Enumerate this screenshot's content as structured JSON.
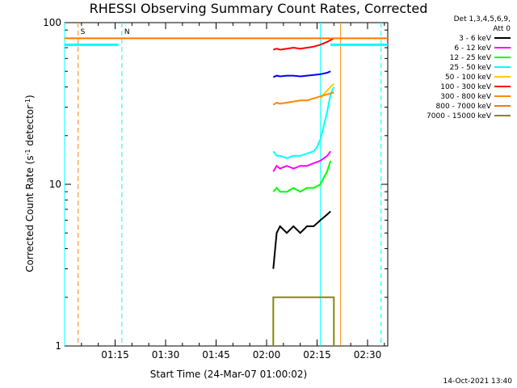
{
  "chart_data": {
    "type": "line",
    "title": "RHESSI Observing Summary Count Rates, Corrected",
    "xlabel": "Start Time (24-Mar-07 01:00:02)",
    "ylabel_main": "Corrected Count Rate (s",
    "ylabel_sup1": "-1",
    "ylabel_mid": " detector",
    "ylabel_sup2": "-1",
    "ylabel_end": ")",
    "x_range_minutes": [
      0,
      96
    ],
    "y_scale": "log",
    "ylim": [
      1,
      100
    ],
    "x_ticks": [
      {
        "label": "01:15",
        "minute": 15
      },
      {
        "label": "01:30",
        "minute": 30
      },
      {
        "label": "01:45",
        "minute": 45
      },
      {
        "label": "02:00",
        "minute": 60
      },
      {
        "label": "02:15",
        "minute": 75
      },
      {
        "label": "02:30",
        "minute": 90
      }
    ],
    "y_ticks": [
      {
        "label": "1",
        "value": 1
      },
      {
        "label": "10",
        "value": 10
      },
      {
        "label": "100",
        "value": 100
      }
    ],
    "legend_header": [
      "Det 1,3,4,5,6,9,",
      "Att 0"
    ],
    "series": [
      {
        "name": "3 - 6 keV",
        "color": "#000000",
        "values": [
          [
            62,
            3.0
          ],
          [
            63,
            5.0
          ],
          [
            64,
            5.5
          ],
          [
            66,
            5.0
          ],
          [
            68,
            5.5
          ],
          [
            70,
            5.0
          ],
          [
            72,
            5.5
          ],
          [
            74,
            5.5
          ],
          [
            76,
            6.0
          ],
          [
            78,
            6.5
          ],
          [
            79,
            6.8
          ]
        ]
      },
      {
        "name": "6 - 12 keV",
        "color": "#ff00ff",
        "values": [
          [
            62,
            12.0
          ],
          [
            63,
            13.0
          ],
          [
            64,
            12.5
          ],
          [
            66,
            13.0
          ],
          [
            68,
            12.5
          ],
          [
            70,
            13.0
          ],
          [
            72,
            13.0
          ],
          [
            74,
            13.5
          ],
          [
            76,
            14.0
          ],
          [
            78,
            15.0
          ],
          [
            79,
            16.0
          ]
        ]
      },
      {
        "name": "12 - 25 keV",
        "color": "#00ff00",
        "values": [
          [
            62,
            9.0
          ],
          [
            63,
            9.5
          ],
          [
            64,
            9.0
          ],
          [
            66,
            9.0
          ],
          [
            68,
            9.5
          ],
          [
            70,
            9.0
          ],
          [
            72,
            9.5
          ],
          [
            74,
            9.5
          ],
          [
            76,
            10.0
          ],
          [
            77,
            11.0
          ],
          [
            78,
            12.0
          ],
          [
            79,
            14.0
          ]
        ]
      },
      {
        "name": "25 - 50 keV",
        "color": "#00ffff",
        "values": [
          [
            62,
            16.0
          ],
          [
            63,
            15.0
          ],
          [
            64,
            15.0
          ],
          [
            66,
            14.5
          ],
          [
            68,
            15.0
          ],
          [
            70,
            15.0
          ],
          [
            72,
            15.5
          ],
          [
            74,
            16.0
          ],
          [
            75,
            17.0
          ],
          [
            76,
            19.0
          ],
          [
            77,
            23.0
          ],
          [
            78,
            28.0
          ],
          [
            79,
            36.0
          ],
          [
            80,
            40.0
          ]
        ]
      },
      {
        "name": "50 - 100 keV",
        "color": "#ffcc00",
        "values": [
          [
            76,
            34.0
          ],
          [
            77,
            36.0
          ],
          [
            78,
            38.0
          ],
          [
            79,
            40.0
          ],
          [
            80,
            42.0
          ]
        ]
      },
      {
        "name": "100 - 300 keV",
        "color": "#ff0000",
        "values": [
          [
            62,
            68.0
          ],
          [
            63,
            69.0
          ],
          [
            64,
            68.0
          ],
          [
            66,
            69.0
          ],
          [
            68,
            70.0
          ],
          [
            70,
            69.0
          ],
          [
            72,
            70.0
          ],
          [
            74,
            71.0
          ],
          [
            76,
            73.0
          ],
          [
            78,
            76.0
          ],
          [
            79,
            78.0
          ],
          [
            80,
            80.0
          ]
        ]
      },
      {
        "name": "300 - 800 keV",
        "color": "#ff8800",
        "values": [
          [
            62,
            31.0
          ],
          [
            63,
            32.0
          ],
          [
            64,
            31.5
          ],
          [
            66,
            32.0
          ],
          [
            68,
            32.5
          ],
          [
            70,
            33.0
          ],
          [
            72,
            33.0
          ],
          [
            74,
            34.0
          ],
          [
            76,
            35.0
          ],
          [
            78,
            36.0
          ],
          [
            80,
            37.0
          ]
        ]
      },
      {
        "name": "800 - 7000 keV",
        "color": "#ff7700",
        "values": [
          [
            0,
            80.0
          ],
          [
            7,
            80.0
          ],
          [
            83,
            80.0
          ],
          [
            96,
            80.0
          ]
        ]
      },
      {
        "name": "7000 - 15000 keV",
        "color": "#888800",
        "values": [
          [
            62,
            1.0
          ],
          [
            62,
            2.0
          ],
          [
            80,
            2.0
          ],
          [
            80,
            1.0
          ]
        ]
      },
      {
        "name": "",
        "color": "#0000ff",
        "values": [
          [
            62,
            46.0
          ],
          [
            63,
            47.0
          ],
          [
            64,
            46.5
          ],
          [
            66,
            47.0
          ],
          [
            68,
            47.0
          ],
          [
            70,
            46.5
          ],
          [
            72,
            47.0
          ],
          [
            74,
            47.5
          ],
          [
            76,
            48.0
          ],
          [
            78,
            49.0
          ],
          [
            79,
            50.0
          ]
        ]
      }
    ],
    "extra_lines": [
      {
        "type": "vertical",
        "minute": 0,
        "color": "#00ffff"
      },
      {
        "type": "horizontal",
        "minutes": [
          0,
          16
        ],
        "value": 73,
        "color": "#00ffff"
      },
      {
        "type": "horizontal",
        "minutes": [
          79,
          96
        ],
        "value": 73,
        "color": "#00ffff"
      }
    ],
    "markers": [
      {
        "label": "S",
        "minute": 4,
        "color": "#ff8800"
      },
      {
        "label": "N",
        "minute": 17,
        "color": "#00ffff"
      }
    ],
    "dashed_lines": [
      {
        "minute": 4,
        "color": "#ff8800"
      },
      {
        "minute": 17,
        "color": "#00ffff"
      },
      {
        "minute": 94,
        "color": "#00ffff"
      }
    ],
    "solid_vertical_lines": [
      {
        "minute": 76,
        "color": "#00ffff"
      },
      {
        "minute": 82,
        "color": "#ff8800"
      }
    ],
    "timestamp": "14-Oct-2021 13:40"
  }
}
